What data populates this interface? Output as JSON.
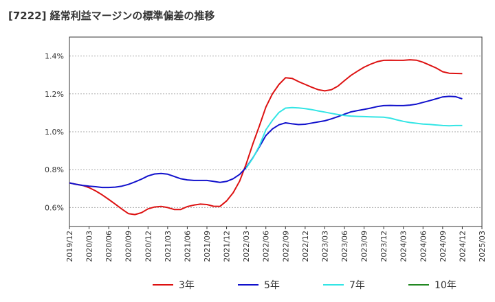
{
  "chart_data": {
    "type": "line",
    "title": "[7222]  経常利益マージンの標準偏差の推移",
    "x_tick_labels": [
      "2019/12",
      "2020/03",
      "2020/06",
      "2020/09",
      "2020/12",
      "2021/03",
      "2021/06",
      "2021/09",
      "2021/12",
      "2022/03",
      "2022/06",
      "2022/09",
      "2022/12",
      "2023/03",
      "2023/06",
      "2023/09",
      "2023/12",
      "2024/03",
      "2024/06",
      "2024/09",
      "2024/12",
      "2025/03"
    ],
    "y_tick_labels": [
      "0.6%",
      "0.8%",
      "1.0%",
      "1.2%",
      "1.4%"
    ],
    "y_ticks": [
      0.6,
      0.8,
      1.0,
      1.2,
      1.4
    ],
    "ylim": [
      0.5,
      1.5
    ],
    "grid": true,
    "legend_position": "bottom",
    "series": [
      {
        "name": "3年",
        "color": "#dd1111",
        "x": [
          "2019/12",
          "2020/01",
          "2020/02",
          "2020/03",
          "2020/04",
          "2020/05",
          "2020/06",
          "2020/07",
          "2020/08",
          "2020/09",
          "2020/10",
          "2020/11",
          "2020/12",
          "2021/01",
          "2021/02",
          "2021/03",
          "2021/04",
          "2021/05",
          "2021/06",
          "2021/07",
          "2021/08",
          "2021/09",
          "2021/10",
          "2021/11",
          "2021/12",
          "2022/01",
          "2022/02",
          "2022/03",
          "2022/04",
          "2022/05",
          "2022/06",
          "2022/07",
          "2022/08",
          "2022/09",
          "2022/10",
          "2022/11",
          "2022/12",
          "2023/01",
          "2023/02",
          "2023/03",
          "2023/04",
          "2023/05",
          "2023/06",
          "2023/07",
          "2023/08",
          "2023/09",
          "2023/10",
          "2023/11",
          "2023/12",
          "2024/01",
          "2024/02",
          "2024/03",
          "2024/04",
          "2024/05",
          "2024/06",
          "2024/07",
          "2024/08",
          "2024/09",
          "2024/10",
          "2024/11",
          "2024/12"
        ],
        "values": [
          0.73,
          0.723,
          0.717,
          0.705,
          0.688,
          0.667,
          0.643,
          0.618,
          0.592,
          0.568,
          0.563,
          0.573,
          0.593,
          0.603,
          0.606,
          0.6,
          0.59,
          0.59,
          0.605,
          0.613,
          0.618,
          0.616,
          0.607,
          0.606,
          0.635,
          0.678,
          0.74,
          0.83,
          0.935,
          1.03,
          1.13,
          1.2,
          1.25,
          1.285,
          1.282,
          1.265,
          1.25,
          1.235,
          1.222,
          1.216,
          1.222,
          1.241,
          1.27,
          1.298,
          1.32,
          1.341,
          1.357,
          1.37,
          1.377,
          1.378,
          1.377,
          1.377,
          1.38,
          1.378,
          1.367,
          1.352,
          1.337,
          1.317,
          1.309,
          1.308,
          1.307
        ]
      },
      {
        "name": "5年",
        "color": "#1111cc",
        "x": [
          "2019/12",
          "2020/01",
          "2020/02",
          "2020/03",
          "2020/04",
          "2020/05",
          "2020/06",
          "2020/07",
          "2020/08",
          "2020/09",
          "2020/10",
          "2020/11",
          "2020/12",
          "2021/01",
          "2021/02",
          "2021/03",
          "2021/04",
          "2021/05",
          "2021/06",
          "2021/07",
          "2021/08",
          "2021/09",
          "2021/10",
          "2021/11",
          "2021/12",
          "2022/01",
          "2022/02",
          "2022/03",
          "2022/04",
          "2022/05",
          "2022/06",
          "2022/07",
          "2022/08",
          "2022/09",
          "2022/10",
          "2022/11",
          "2022/12",
          "2023/01",
          "2023/02",
          "2023/03",
          "2023/04",
          "2023/05",
          "2023/06",
          "2023/07",
          "2023/08",
          "2023/09",
          "2023/10",
          "2023/11",
          "2023/12",
          "2024/01",
          "2024/02",
          "2024/03",
          "2024/04",
          "2024/05",
          "2024/06",
          "2024/07",
          "2024/08",
          "2024/09",
          "2024/10",
          "2024/11",
          "2024/12"
        ],
        "values": [
          0.73,
          0.723,
          0.717,
          0.713,
          0.71,
          0.706,
          0.706,
          0.708,
          0.713,
          0.722,
          0.735,
          0.75,
          0.767,
          0.777,
          0.78,
          0.776,
          0.764,
          0.752,
          0.746,
          0.743,
          0.743,
          0.743,
          0.738,
          0.733,
          0.738,
          0.752,
          0.775,
          0.812,
          0.862,
          0.92,
          0.98,
          1.015,
          1.037,
          1.047,
          1.042,
          1.038,
          1.04,
          1.046,
          1.052,
          1.058,
          1.068,
          1.08,
          1.093,
          1.105,
          1.112,
          1.118,
          1.125,
          1.133,
          1.138,
          1.139,
          1.138,
          1.138,
          1.141,
          1.146,
          1.155,
          1.164,
          1.174,
          1.184,
          1.187,
          1.185,
          1.174
        ]
      },
      {
        "name": "7年",
        "color": "#33e5e5",
        "x": [
          "2022/03",
          "2022/04",
          "2022/05",
          "2022/06",
          "2022/07",
          "2022/08",
          "2022/09",
          "2022/10",
          "2022/11",
          "2022/12",
          "2023/01",
          "2023/02",
          "2023/03",
          "2023/04",
          "2023/05",
          "2023/06",
          "2023/07",
          "2023/08",
          "2023/09",
          "2023/10",
          "2023/11",
          "2023/12",
          "2024/01",
          "2024/02",
          "2024/03",
          "2024/04",
          "2024/05",
          "2024/06",
          "2024/07",
          "2024/08",
          "2024/09",
          "2024/10",
          "2024/11",
          "2024/12"
        ],
        "values": [
          0.808,
          0.86,
          0.925,
          1.01,
          1.06,
          1.102,
          1.125,
          1.128,
          1.126,
          1.122,
          1.117,
          1.11,
          1.104,
          1.097,
          1.091,
          1.086,
          1.083,
          1.081,
          1.08,
          1.079,
          1.078,
          1.077,
          1.072,
          1.063,
          1.055,
          1.049,
          1.045,
          1.041,
          1.039,
          1.036,
          1.033,
          1.032,
          1.033,
          1.033
        ]
      },
      {
        "name": "10年",
        "color": "#228822",
        "x": [],
        "values": []
      }
    ]
  }
}
